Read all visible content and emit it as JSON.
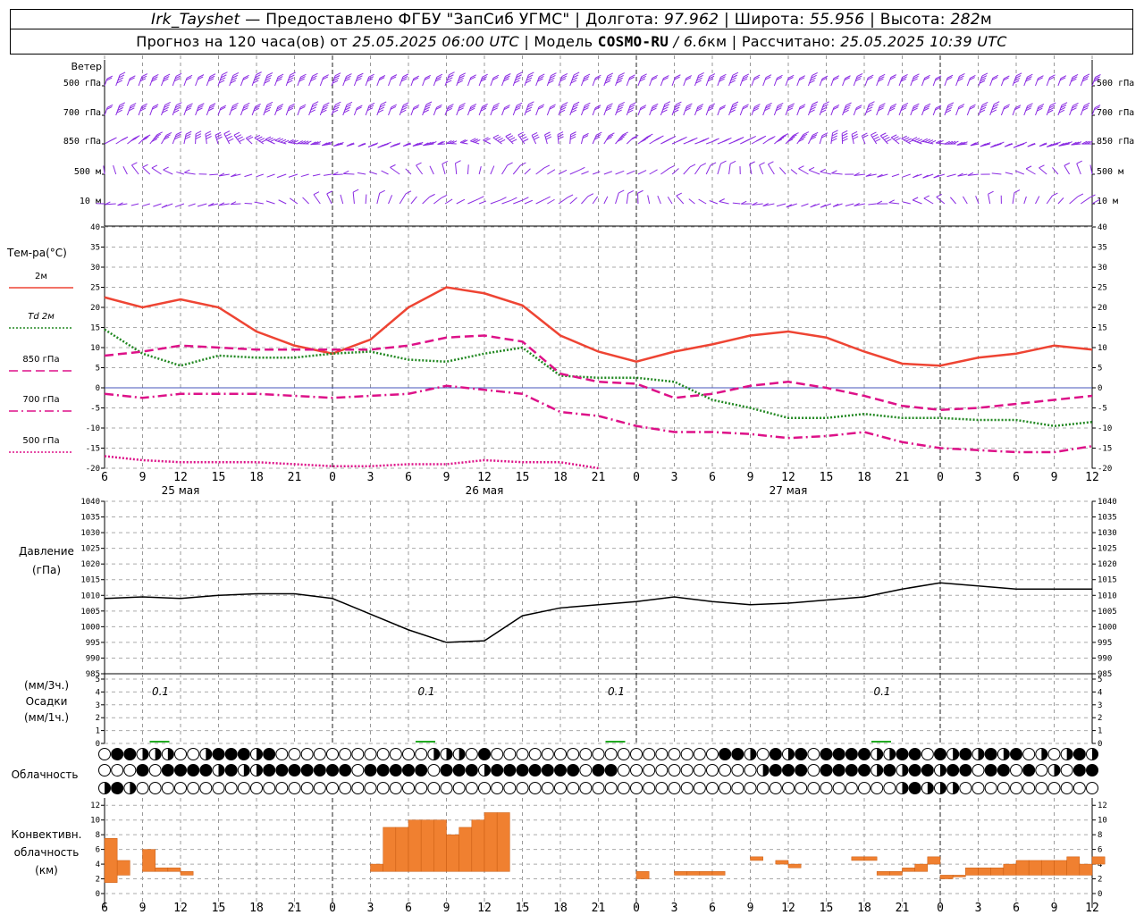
{
  "header": {
    "station": "Irk_Tayshet",
    "provided_by": "— Предоставлено ФГБУ \"ЗапСиб УГМС\" | Долгота:",
    "lon": "97.962",
    "lat_label": "| Широта:",
    "lat": "55.956",
    "alt_label": "| Высота:",
    "alt": "282",
    "alt_unit": "м",
    "forecast_prefix": "Прогноз на 120 часа(ов) от",
    "forecast_from": "25.05.2025 06:00 UTC",
    "model_label": "| Модель",
    "model": "COSMO-RU",
    "model_res": "/ 6.6",
    "model_res_unit": "км",
    "calc_label": "| Рассчитано:",
    "calc_time": "25.05.2025 10:39 UTC"
  },
  "chart_data": [
    {
      "type": "wind_barbs",
      "title": "Ветер",
      "levels": [
        "500 гПа",
        "700 гПа",
        "850 гПа",
        "500 м",
        "10 м"
      ],
      "color": "#8a2be2"
    },
    {
      "type": "line",
      "title": "Тем-ра(°C)",
      "ylim": [
        -20,
        40
      ],
      "yticks": [
        -20,
        -15,
        -10,
        -5,
        0,
        5,
        10,
        15,
        20,
        25,
        30,
        35,
        40
      ],
      "x_hours_from_start": [
        0,
        3,
        6,
        9,
        12,
        15,
        18,
        21,
        24,
        27,
        30,
        33,
        36,
        39,
        42,
        45,
        48,
        51,
        54,
        57,
        60,
        63,
        66,
        69,
        72,
        75,
        78
      ],
      "series": [
        {
          "name": "2м",
          "color": "#ee4433",
          "style": "solid",
          "values": [
            22.5,
            20,
            22,
            20,
            14,
            10.5,
            8.5,
            12,
            20,
            25,
            23.5,
            20.5,
            13,
            9,
            6.5,
            9,
            10.8,
            13,
            14,
            12.5,
            9,
            6,
            5.5,
            7.5,
            8.5,
            10.5,
            9.5
          ]
        },
        {
          "name": "Td 2м",
          "color": "#228822",
          "style": "dotted",
          "values": [
            14.5,
            8.5,
            5.5,
            8,
            7.5,
            7.5,
            8.5,
            9,
            7,
            6.5,
            8.5,
            10,
            3,
            2.5,
            2.5,
            1.5,
            -3,
            -5,
            -7.5,
            -7.5,
            -6.5,
            -7.5,
            -7.5,
            -8,
            -8,
            -9.5,
            -8.5
          ]
        },
        {
          "name": "850 гПа",
          "color": "#dd1188",
          "style": "dashed",
          "values": [
            8,
            9,
            10.5,
            10,
            9.5,
            9.5,
            9.5,
            9.5,
            10.5,
            12.5,
            13,
            11.5,
            3.5,
            1.5,
            1,
            -2.5,
            -1.5,
            0.5,
            1.5,
            0,
            -2,
            -4.5,
            -5.5,
            -5,
            -4,
            -3,
            -2
          ]
        },
        {
          "name": "700 гПа",
          "color": "#dd1188",
          "style": "dashdot",
          "values": [
            -1.5,
            -2.5,
            -1.5,
            -1.5,
            -1.5,
            -2,
            -2.5,
            -2,
            -1.5,
            0.5,
            -0.5,
            -1.5,
            -6,
            -7,
            -9.5,
            -11,
            -11,
            -11.5,
            -12.5,
            -12,
            -11,
            -13.5,
            -15,
            -15.5,
            -16,
            -16,
            -14.5
          ]
        },
        {
          "name": "500 гПа",
          "color": "#dd1188",
          "style": "dotted",
          "values": [
            -17,
            -18,
            -18.5,
            -18.5,
            -18.5,
            -19,
            -19.5,
            -19.5,
            -19,
            -19,
            -18,
            -18.5,
            -18.5,
            -20
          ]
        }
      ]
    },
    {
      "type": "line",
      "title": "Давление",
      "unit": "(гПа)",
      "ylim": [
        985,
        1040
      ],
      "yticks": [
        985,
        990,
        995,
        1000,
        1005,
        1010,
        1015,
        1020,
        1025,
        1030,
        1035,
        1040
      ],
      "x_hours_from_start": [
        0,
        3,
        6,
        9,
        12,
        15,
        18,
        21,
        24,
        27,
        30,
        33,
        36,
        39,
        42,
        45,
        48,
        51,
        54,
        57,
        60,
        63,
        66,
        69,
        72,
        75,
        78
      ],
      "series": [
        {
          "name": "",
          "color": "#000000",
          "values": [
            1009,
            1009.5,
            1009,
            1010,
            1010.5,
            1010.5,
            1009,
            1004,
            999,
            995,
            995.5,
            1003.5,
            1006,
            1007,
            1008,
            1009.5,
            1008,
            1007,
            1007.5,
            1008.5,
            1009.5,
            1012,
            1014,
            1013,
            1012,
            1012,
            1012
          ]
        }
      ]
    },
    {
      "type": "bar",
      "title": "Осадки",
      "units": [
        "(мм/3ч.)",
        "(мм/1ч.)"
      ],
      "ylim": [
        0,
        5
      ],
      "yticks": [
        0,
        1,
        2,
        3,
        4,
        5
      ],
      "labels": [
        {
          "hour": 3,
          "text": "0.1"
        },
        {
          "hour": 24,
          "text": "0.1"
        },
        {
          "hour": 39,
          "text": "0.1"
        },
        {
          "hour": 60,
          "text": "0.1"
        }
      ]
    },
    {
      "type": "table",
      "title": "Облачность",
      "rows": 3
    },
    {
      "type": "bar",
      "title": "Конвективн. облачность (км)",
      "ylim": [
        0,
        13
      ],
      "yticks": [
        0,
        2,
        4,
        6,
        8,
        10,
        12
      ],
      "color": "#f08030",
      "bars": [
        {
          "hour": 0.5,
          "bottom": 1.5,
          "top": 7.5
        },
        {
          "hour": 1.5,
          "bottom": 2.5,
          "top": 4.5
        },
        {
          "hour": 3.5,
          "bottom": 3,
          "top": 6
        },
        {
          "hour": 4.5,
          "bottom": 3,
          "top": 3.5
        },
        {
          "hour": 5.5,
          "bottom": 3,
          "top": 3.5
        },
        {
          "hour": 6.5,
          "bottom": 2.5,
          "top": 3
        },
        {
          "hour": 21.5,
          "bottom": 3,
          "top": 4
        },
        {
          "hour": 22.5,
          "bottom": 3,
          "top": 9
        },
        {
          "hour": 23.5,
          "bottom": 3,
          "top": 9
        },
        {
          "hour": 24.5,
          "bottom": 3,
          "top": 10
        },
        {
          "hour": 25.5,
          "bottom": 3,
          "top": 10
        },
        {
          "hour": 26.5,
          "bottom": 3,
          "top": 10
        },
        {
          "hour": 27.5,
          "bottom": 3,
          "top": 8
        },
        {
          "hour": 28.5,
          "bottom": 3,
          "top": 9
        },
        {
          "hour": 29.5,
          "bottom": 3,
          "top": 10
        },
        {
          "hour": 30.5,
          "bottom": 3,
          "top": 11
        },
        {
          "hour": 31.5,
          "bottom": 3,
          "top": 11
        },
        {
          "hour": 42.5,
          "bottom": 2,
          "top": 3
        },
        {
          "hour": 45.5,
          "bottom": 2.5,
          "top": 3
        },
        {
          "hour": 46.5,
          "bottom": 2.5,
          "top": 3
        },
        {
          "hour": 47.5,
          "bottom": 2.5,
          "top": 3
        },
        {
          "hour": 48.5,
          "bottom": 2.5,
          "top": 3
        },
        {
          "hour": 51.5,
          "bottom": 4.5,
          "top": 5
        },
        {
          "hour": 53.5,
          "bottom": 4,
          "top": 4.5
        },
        {
          "hour": 54.5,
          "bottom": 3.5,
          "top": 4
        },
        {
          "hour": 59.5,
          "bottom": 4.5,
          "top": 5
        },
        {
          "hour": 60.5,
          "bottom": 4.5,
          "top": 5
        },
        {
          "hour": 61.5,
          "bottom": 2.5,
          "top": 3
        },
        {
          "hour": 62.5,
          "bottom": 2.5,
          "top": 3
        },
        {
          "hour": 63.5,
          "bottom": 3,
          "top": 3.5
        },
        {
          "hour": 64.5,
          "bottom": 3,
          "top": 4
        },
        {
          "hour": 65.5,
          "bottom": 4,
          "top": 5
        },
        {
          "hour": 66.5,
          "bottom": 2,
          "top": 2.5
        },
        {
          "hour": 67.5,
          "bottom": 2.5,
          "top": 2.5
        },
        {
          "hour": 68.5,
          "bottom": 2.5,
          "top": 3.5
        },
        {
          "hour": 69.5,
          "bottom": 2.5,
          "top": 3.5
        },
        {
          "hour": 70.5,
          "bottom": 2.5,
          "top": 3.5
        },
        {
          "hour": 71.5,
          "bottom": 2.5,
          "top": 4
        },
        {
          "hour": 72.5,
          "bottom": 2.5,
          "top": 4.5
        },
        {
          "hour": 73.5,
          "bottom": 2.5,
          "top": 4.5
        },
        {
          "hour": 74.5,
          "bottom": 2.5,
          "top": 4.5
        },
        {
          "hour": 75.5,
          "bottom": 2.5,
          "top": 4.5
        },
        {
          "hour": 76.5,
          "bottom": 2.5,
          "top": 5
        },
        {
          "hour": 77.5,
          "bottom": 2.5,
          "top": 4
        },
        {
          "hour": 78.5,
          "bottom": 4,
          "top": 5
        }
      ]
    }
  ],
  "x_axis": {
    "tick_labels": [
      "6",
      "9",
      "12",
      "15",
      "18",
      "21",
      "0",
      "3",
      "6",
      "9",
      "12",
      "15",
      "18",
      "21",
      "0",
      "3",
      "6",
      "9",
      "12",
      "15",
      "18",
      "21",
      "0",
      "3",
      "6",
      "9",
      "12"
    ],
    "day_labels": [
      {
        "hour": 6,
        "text": "25 мая"
      },
      {
        "hour": 30,
        "text": "26 мая"
      },
      {
        "hour": 54,
        "text": "27 мая"
      }
    ]
  }
}
